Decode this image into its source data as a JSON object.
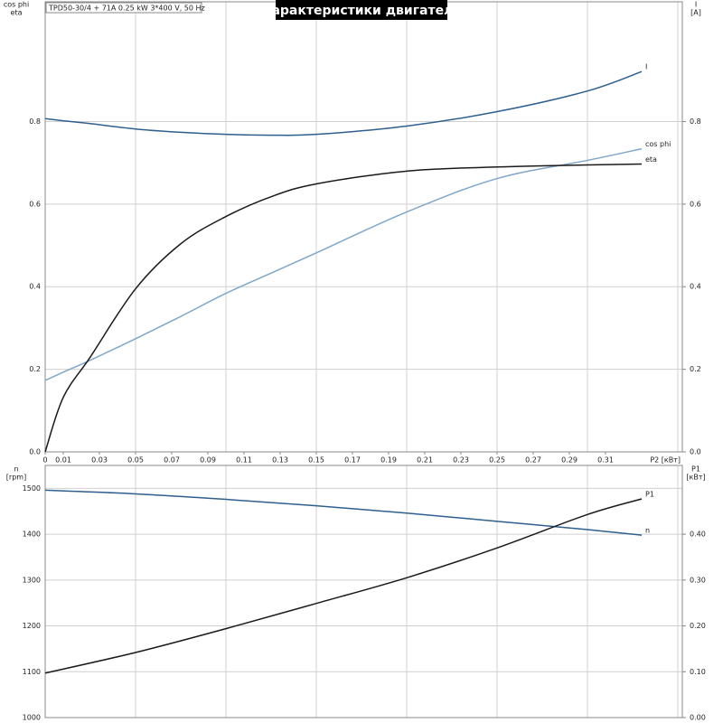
{
  "chart_data": [
    {
      "type": "line",
      "title": "Характеристики двигателя",
      "subtitle": "TPD50-30/4 + 71A  0.25 kW  3*400 V, 50 Hz",
      "y_label": [
        "cos phi",
        "eta"
      ],
      "y2_label": [
        "I",
        "[A]"
      ],
      "x_label": "P2 [кВт]",
      "x": [
        0,
        0.01,
        0.025,
        0.05,
        0.075,
        0.1,
        0.125,
        0.15,
        0.2,
        0.25,
        0.3,
        0.33
      ],
      "xlim": [
        0,
        0.3525
      ],
      "xticks": [
        0,
        0.01,
        0.03,
        0.05,
        0.07,
        0.09,
        0.11,
        0.13,
        0.15,
        0.17,
        0.19,
        0.21,
        0.23,
        0.25,
        0.27,
        0.29,
        0.31
      ],
      "xgrid": [
        0.05,
        0.1,
        0.15,
        0.2,
        0.25,
        0.3,
        0.35
      ],
      "ylim": [
        0,
        1.09
      ],
      "yticks": [
        {
          "value": 0,
          "label": "0.0"
        },
        {
          "value": 0.2,
          "label": "0.2"
        },
        {
          "value": 0.4,
          "label": "0.4"
        },
        {
          "value": 0.6,
          "label": "0.6"
        },
        {
          "value": 0.8,
          "label": "0.8"
        }
      ],
      "y2lim": [
        0,
        1.09
      ],
      "y2ticks": [
        {
          "value": 0,
          "label": "0.0"
        },
        {
          "value": 0.2,
          "label": "0.2"
        },
        {
          "value": 0.4,
          "label": "0.4"
        },
        {
          "value": 0.6,
          "label": "0.6"
        },
        {
          "value": 0.8,
          "label": "0.8"
        }
      ],
      "grid": true,
      "series": [
        {
          "name": "I",
          "color": "#2e5f8e",
          "axis": "y2",
          "values": [
            0.807,
            0.802,
            0.795,
            0.782,
            0.774,
            0.769,
            0.767,
            0.769,
            0.789,
            0.824,
            0.874,
            0.921
          ]
        },
        {
          "name": "cos phi",
          "color": "#7fa7c9",
          "values": [
            0.173,
            0.193,
            0.222,
            0.274,
            0.328,
            0.384,
            0.433,
            0.482,
            0.581,
            0.662,
            0.706,
            0.734
          ]
        },
        {
          "name": "eta",
          "color": "#1a1a1a",
          "values": [
            0,
            0.132,
            0.23,
            0.395,
            0.504,
            0.57,
            0.618,
            0.649,
            0.68,
            0.69,
            0.695,
            0.697
          ]
        }
      ]
    },
    {
      "type": "line",
      "y_label": [
        "n",
        "[rpm]"
      ],
      "y2_label": [
        "P1",
        "[кВт]"
      ],
      "x": [
        0,
        0.05,
        0.1,
        0.15,
        0.2,
        0.25,
        0.3,
        0.33
      ],
      "xlim": [
        0,
        0.3525
      ],
      "xgrid": [
        0.05,
        0.1,
        0.15,
        0.2,
        0.25,
        0.3,
        0.35
      ],
      "ylim": [
        1000,
        1550
      ],
      "yticks": [
        1000,
        1100,
        1200,
        1300,
        1400,
        1500
      ],
      "y2lim": [
        0,
        0.55
      ],
      "y2ticks": [
        {
          "value": 0,
          "label": "0.00"
        },
        {
          "value": 0.1,
          "label": "0.10"
        },
        {
          "value": 0.2,
          "label": "0.20"
        },
        {
          "value": 0.3,
          "label": "0.30"
        },
        {
          "value": 0.4,
          "label": "0.40"
        }
      ],
      "grid": true,
      "series": [
        {
          "name": "n",
          "color": "#2e5f8e",
          "values": [
            1496,
            1488,
            1476,
            1462,
            1446,
            1428,
            1410,
            1398
          ]
        },
        {
          "name": "P1",
          "color": "#1a1a1a",
          "axis": "y2",
          "values": [
            0.097,
            0.142,
            0.194,
            0.249,
            0.305,
            0.37,
            0.443,
            0.477
          ]
        }
      ]
    }
  ]
}
